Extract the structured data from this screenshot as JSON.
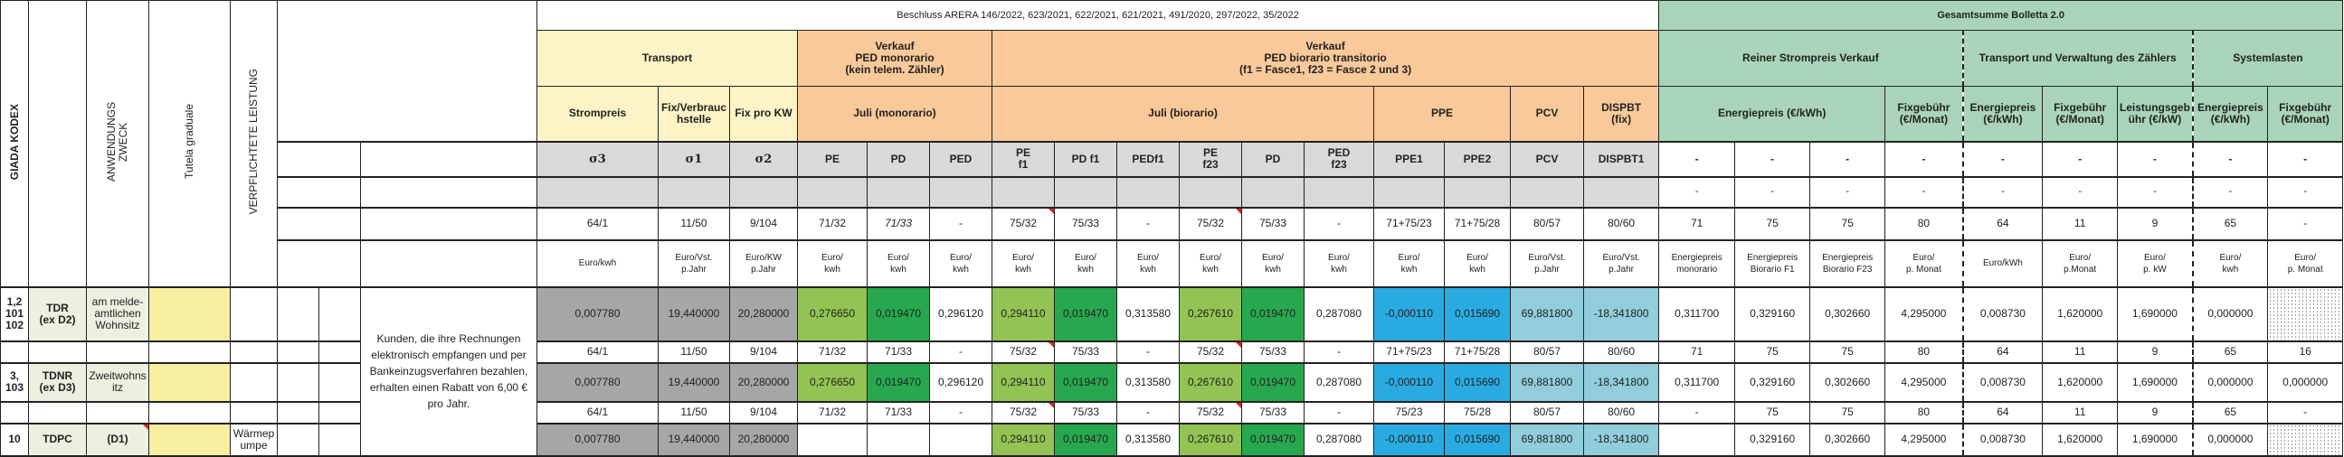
{
  "left_headers": {
    "kodex": "GIADA KODEX",
    "zweck": "ANWENDUNGS\nZWECK",
    "tutela": "Tutela graduale",
    "leistung": "VERPFLICHTETE LEISTUNG"
  },
  "title": "Beschluss ARERA 146/2022, 623/2021, 622/2021, 621/2021, 491/2020, 297/2022, 35/2022",
  "total_title": "Gesamtsumme Bolletta 2.0",
  "groups": {
    "transport": "Transport",
    "verkauf_mono": "Verkauf\nPED monorario\n(kein telem. Zähler)",
    "verkauf_bio": "Verkauf\nPED biorario transitorio\n(f1 = Fasce1, f23 = Fasce 2 und 3)",
    "reiner": "Reiner Strompreis Verkauf",
    "transport_verw": "Transport und Verwaltung des Zählers",
    "systemlasten": "Systemlasten"
  },
  "subheaders": {
    "strompreis": "Strompreis",
    "fix_verbrauch": "Fix/Verbrauchstelle",
    "fix_kw": "Fix pro KW",
    "juli_mono": "Juli (monorario)",
    "juli_bio": "Juli (biorario)",
    "ppe": "PPE",
    "pcv": "PCV",
    "dispbt": "DISPBT\n(fix)",
    "energiepreis": "Energiepreis (€/kWh)",
    "fixgebuehr": "Fixgebühr (€/Monat)",
    "tv_energie": "Energiepreis (€/kWh)",
    "tv_fix": "Fixgebühr (€/Monat)",
    "tv_leistung": "Leistungsgebühr (€/kW)",
    "sl_energie": "Energiepreis (€/kWh)",
    "sl_fix": "Fixgebühr (€/Monat)"
  },
  "codes": [
    "σ3",
    "σ1",
    "σ2",
    "PE",
    "PD",
    "PED",
    "PE\nf1",
    "PD f1",
    "PEDf1",
    "PE\nf23",
    "PD",
    "PED\nf23",
    "PPE1",
    "PPE2",
    "PCV",
    "DISPBT1",
    "-",
    "-",
    "-",
    "-",
    "-",
    "-",
    "-",
    "-",
    "-"
  ],
  "gray_row_right": [
    "-",
    "-",
    "-",
    "-",
    "-",
    "-",
    "-",
    "-",
    "-"
  ],
  "refs_header": [
    "64/1",
    "11/50",
    "9/104",
    "71/32",
    "71/33",
    "-",
    "75/32",
    "75/33",
    "-",
    "75/32",
    "75/33",
    "-",
    "71+75/23",
    "71+75/28",
    "80/57",
    "80/60",
    "71",
    "75",
    "75",
    "80",
    "64",
    "11",
    "9",
    "65",
    "-"
  ],
  "units": [
    "Euro/kwh",
    "Euro/Vst.\np.Jahr",
    "Euro/KW\np.Jahr",
    "Euro/\nkwh",
    "Euro/\nkwh",
    "Euro/\nkwh",
    "Euro/\nkwh",
    "Euro/\nkwh",
    "Euro/\nkwh",
    "Euro/\nkwh",
    "Euro/\nkwh",
    "Euro/\nkwh",
    "Euro/\nkwh",
    "Euro/\nkwh",
    "Euro/Vst.\np.Jahr",
    "Euro/Vst.\np.Jahr",
    "Energiepreis\nmonorario",
    "Energiepreis\nBiorario F1",
    "Energiepreis\nBiorario F23",
    "Euro/\np. Monat",
    "Euro/kWh",
    "Euro/\np.Monat",
    "Euro/\np. kW",
    "Euro/\nkwh",
    "Euro/\np. Monat"
  ],
  "kunden_note": "Kunden, die ihre Rechnungen elektronisch empfangen und per Bankeinzugsverfahren bezahlen, erhalten einen Rabatt von 6,00 € pro Jahr.",
  "tariffs": [
    {
      "kodex": "1,2\n101\n102",
      "tarif": "TDR\n(ex D2)",
      "zweck": "am melde-\namtlichen\nWohnsitz",
      "leistung": "",
      "values": [
        "0,007780",
        "19,440000",
        "20,280000",
        "0,276650",
        "0,019470",
        "0,296120",
        "0,294110",
        "0,019470",
        "0,313580",
        "0,267610",
        "0,019470",
        "0,287080",
        "-0,000110",
        "0,015690",
        "69,881800",
        "-18,341800",
        "0,311700",
        "0,329160",
        "0,302660",
        "4,295000",
        "0,008730",
        "1,620000",
        "1,690000",
        "0,000000",
        ""
      ],
      "refs": [
        "64/1",
        "11/50",
        "9/104",
        "71/32",
        "71/33",
        "-",
        "75/32",
        "75/33",
        "-",
        "75/32",
        "75/33",
        "-",
        "71+75/23",
        "71+75/28",
        "80/57",
        "80/60",
        "71",
        "75",
        "75",
        "80",
        "64",
        "11",
        "9",
        "65",
        "16"
      ]
    },
    {
      "kodex": "3,\n103",
      "tarif": "TDNR\n(ex D3)",
      "zweck": "Zweitwohns\nitz",
      "leistung": "",
      "values": [
        "0,007780",
        "19,440000",
        "20,280000",
        "0,276650",
        "0,019470",
        "0,296120",
        "0,294110",
        "0,019470",
        "0,313580",
        "0,267610",
        "0,019470",
        "0,287080",
        "-0,000110",
        "0,015690",
        "69,881800",
        "-18,341800",
        "0,311700",
        "0,329160",
        "0,302660",
        "4,295000",
        "0,008730",
        "1,620000",
        "1,690000",
        "0,000000",
        "0,000000"
      ],
      "refs": [
        "64/1",
        "11/50",
        "9/104",
        "71/32",
        "71/33",
        "-",
        "75/32",
        "75/33",
        "-",
        "75/32",
        "75/33",
        "-",
        "75/23",
        "75/28",
        "80/57",
        "80/60",
        "-",
        "75",
        "75",
        "80",
        "64",
        "11",
        "9",
        "65",
        "-"
      ]
    },
    {
      "kodex": "10",
      "tarif": "TDPC",
      "zweck": "(D1)",
      "leistung": "Wärmep\numpe",
      "values": [
        "0,007780",
        "19,440000",
        "20,280000",
        "",
        "",
        "",
        "0,294110",
        "0,019470",
        "0,313580",
        "0,267610",
        "0,019470",
        "0,287080",
        "-0,000110",
        "0,015690",
        "69,881800",
        "-18,341800",
        "",
        "0,329160",
        "0,302660",
        "4,295000",
        "0,008730",
        "1,620000",
        "1,690000",
        "0,000000",
        ""
      ],
      "refs": null
    }
  ],
  "colors": {
    "transport_header": "#fcf4c6",
    "verkauf_header": "#f9c99a",
    "gesamt_header": "#a9d4b9",
    "code_row": "#d9d9d9",
    "transport_values": "#a6a6a6",
    "pe_values": "#92c353",
    "pd_values": "#27a84f",
    "ppe_values": "#29abe2",
    "pcv_dispbt_values": "#92cddc",
    "tutela_fill": "#f7ef9f",
    "tariff_label": "#ebf1de"
  }
}
